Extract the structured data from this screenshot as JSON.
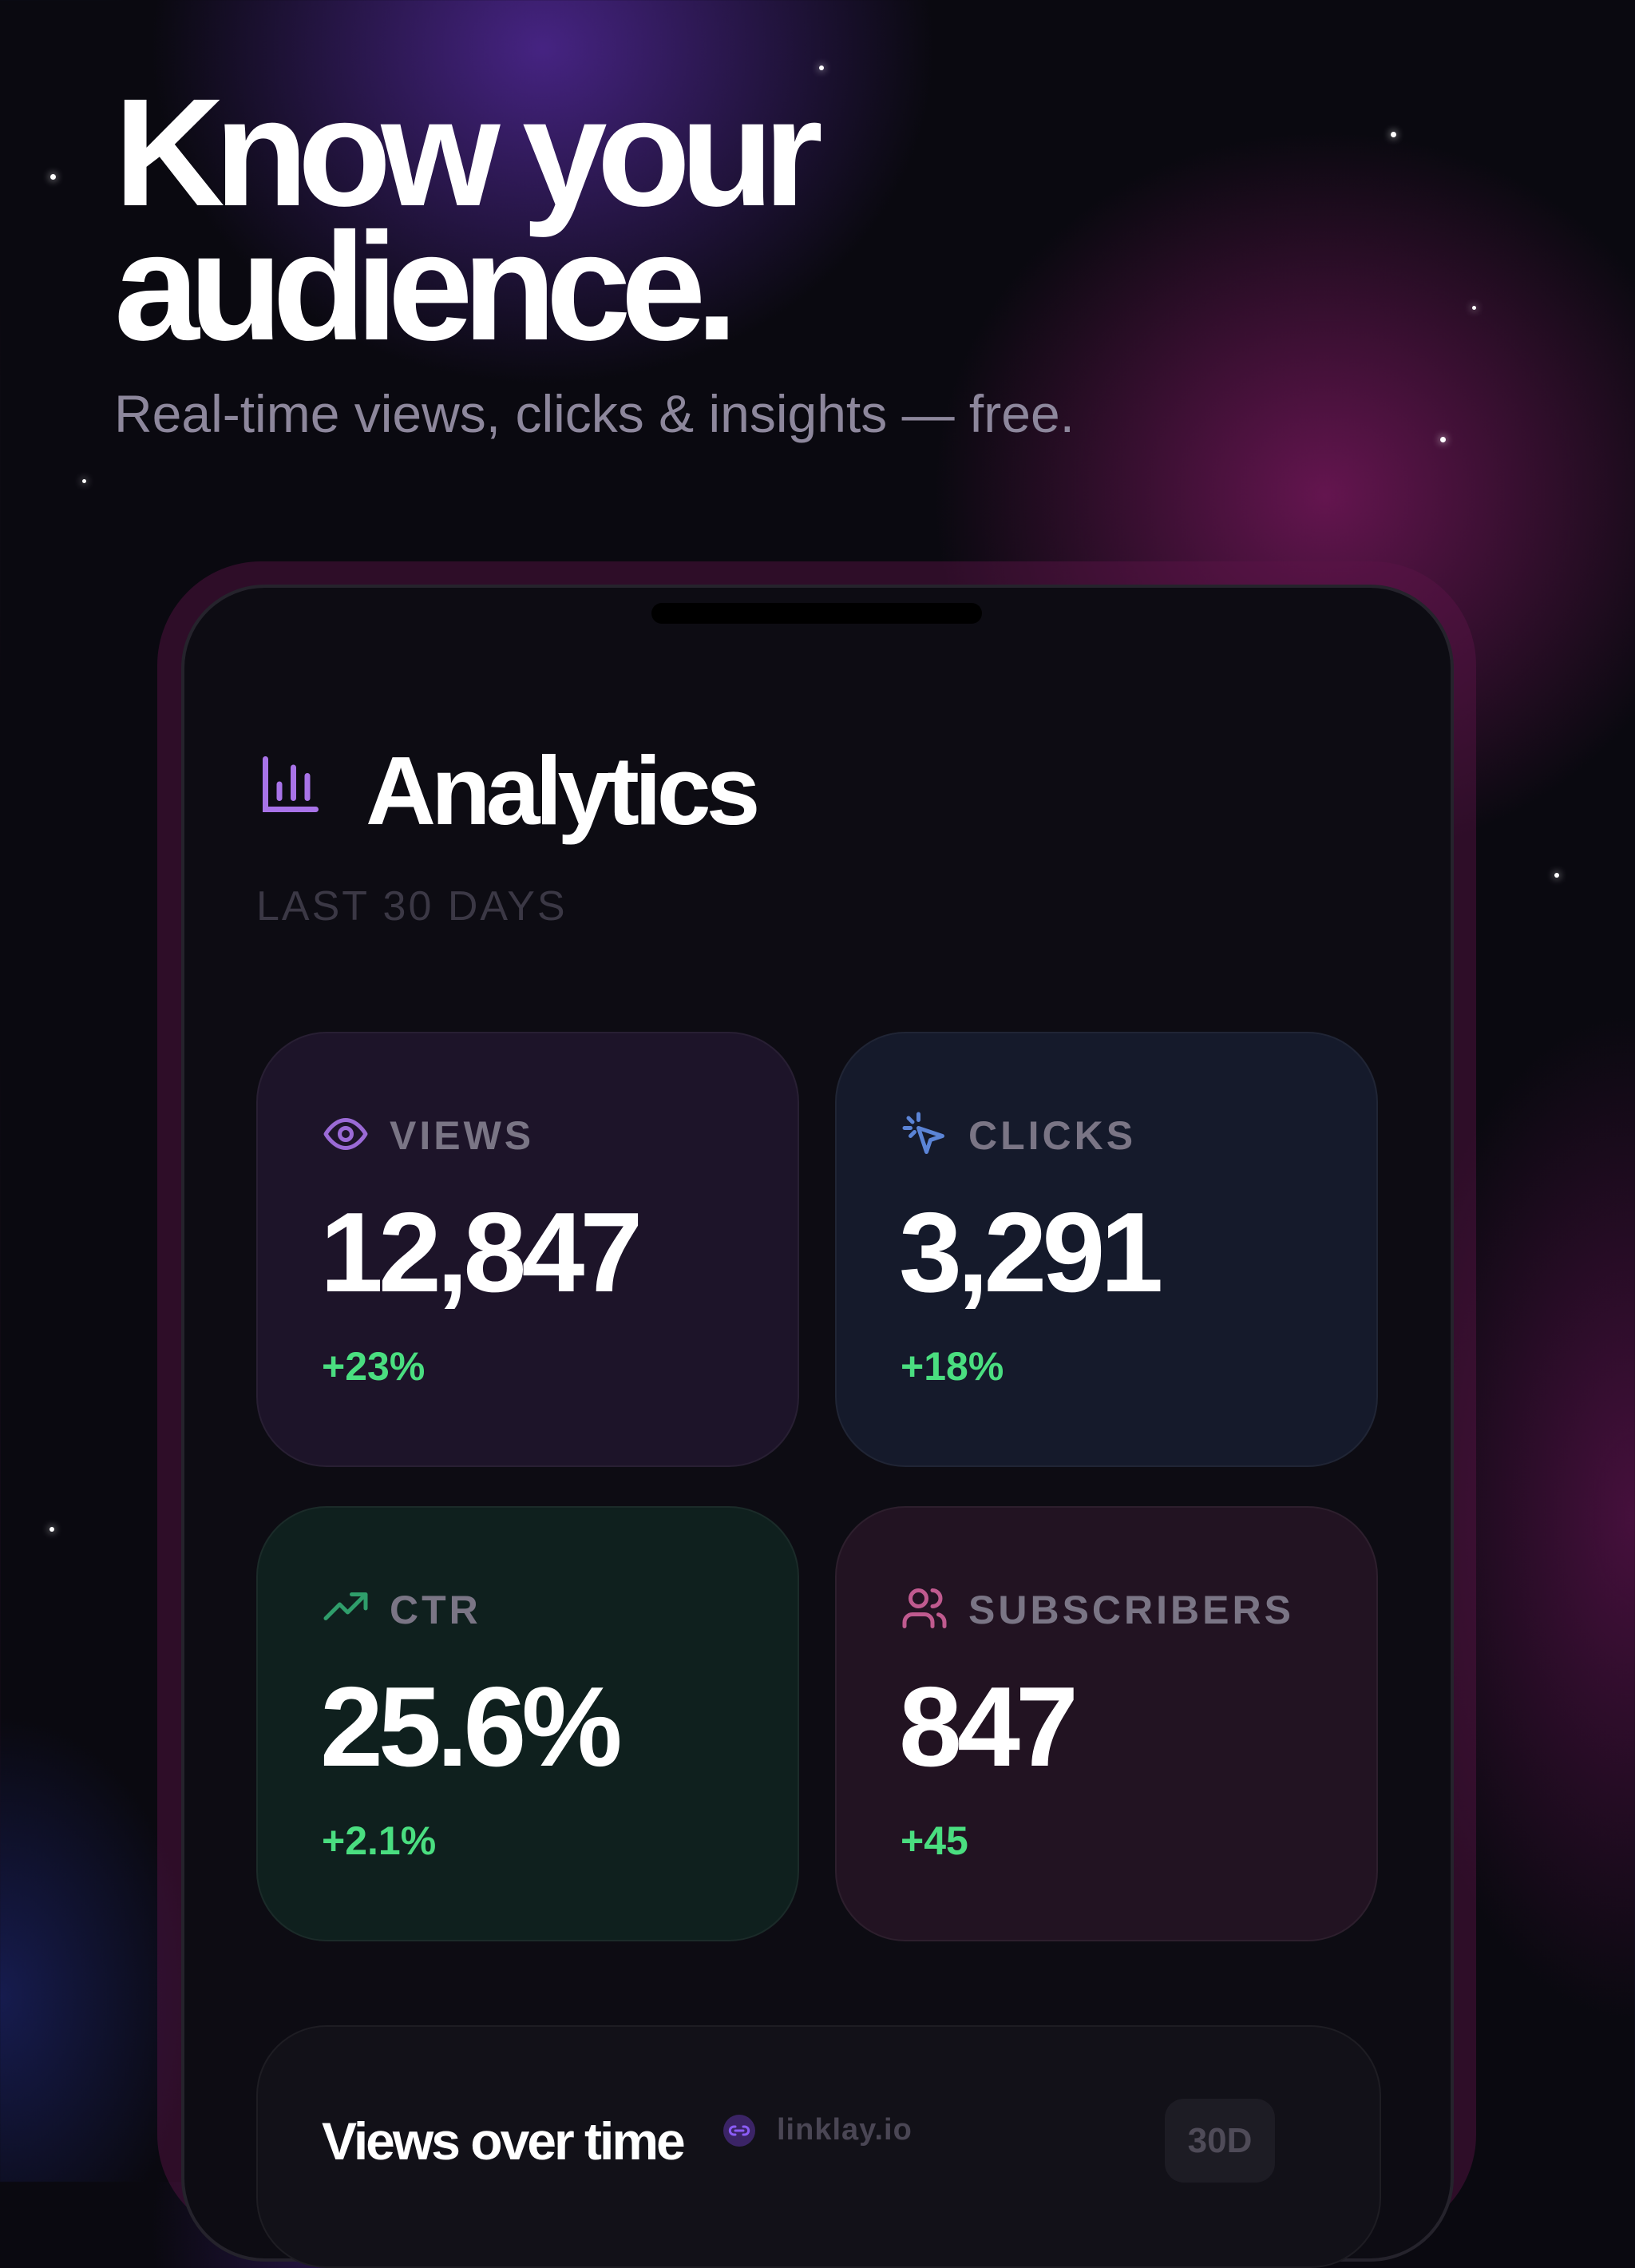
{
  "header": {
    "title_line1": "Know your",
    "title_line2": "audience.",
    "subtitle": "Real-time views, clicks & insights — free."
  },
  "app": {
    "title": "Analytics",
    "period": "LAST 30 DAYS",
    "stats": [
      {
        "label": "VIEWS",
        "value": "12,847",
        "change": "+23%"
      },
      {
        "label": "CLICKS",
        "value": "3,291",
        "change": "+18%"
      },
      {
        "label": "CTR",
        "value": "25.6%",
        "change": "+2.1%"
      },
      {
        "label": "SUBSCRIBERS",
        "value": "847",
        "change": "+45"
      }
    ],
    "chart_card": {
      "title": "Views over time",
      "link": "linklay.io",
      "range": "30D"
    }
  }
}
